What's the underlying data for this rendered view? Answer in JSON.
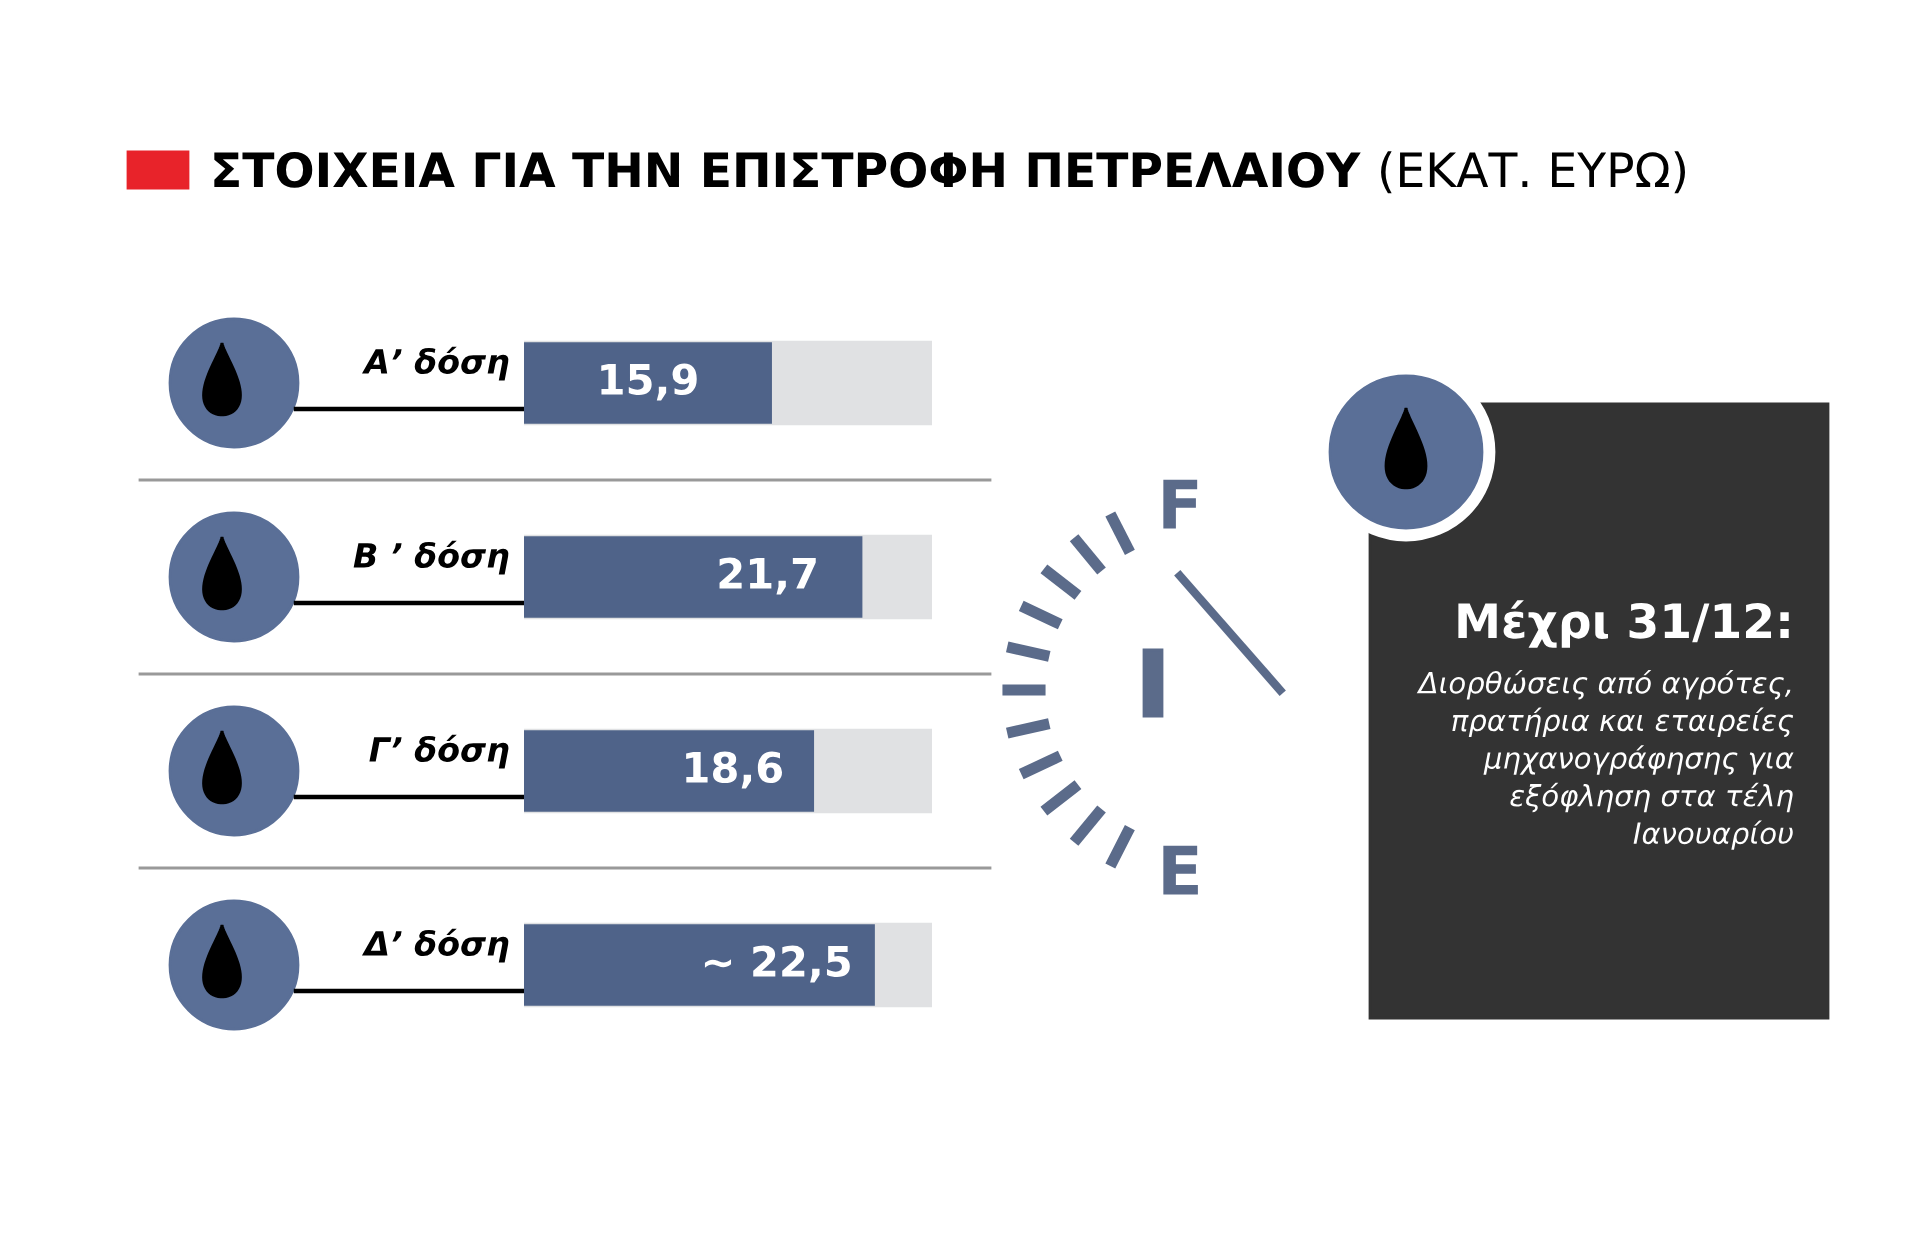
{
  "chart_data": {
    "type": "bar",
    "orientation": "horizontal",
    "title": "ΣΤΟΙΧΕΙΑ ΓΙΑ ΤΗΝ ΕΠΙΣΤΡΟΦΗ ΠΕΤΡΕΛΑΙΟΥ",
    "subtitle": "(ΕΚΑΤ. ΕΥΡΩ)",
    "categories": [
      "Α’ δόση",
      "Β ’ δόση",
      "Γ’ δόση",
      "Δ’ δόση"
    ],
    "values": [
      15.9,
      21.7,
      18.6,
      22.5
    ],
    "value_labels": [
      "15,9",
      "21,7",
      "18,6",
      "~ 22,5"
    ],
    "color": "#4f6389",
    "annotations": [
      "F",
      "E",
      "Μέχρι 31/12:",
      "Διορθώσεις από αγρότες,\nπρατήρια και εταιρείες\nμηχανογράφησης για\nεξόφληση στα τέλη\nΙανουαρίου"
    ]
  }
}
